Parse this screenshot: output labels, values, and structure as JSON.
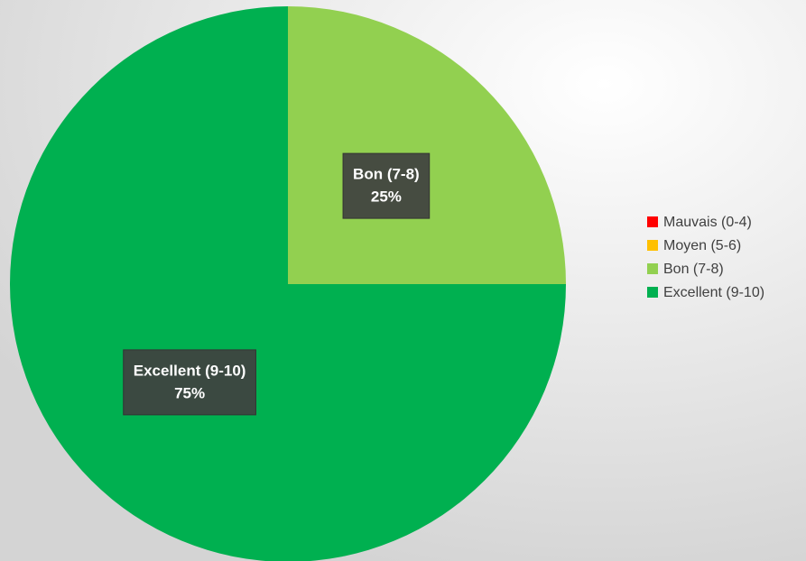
{
  "chart_data": {
    "type": "pie",
    "categories": [
      "Mauvais (0-4)",
      "Moyen (5-6)",
      "Bon (7-8)",
      "Excellent (9-10)"
    ],
    "values": [
      0,
      0,
      25,
      75
    ],
    "value_labels": [
      null,
      null,
      "25%",
      "75%"
    ],
    "colors": [
      "#ff0000",
      "#ffc000",
      "#92d050",
      "#00b050"
    ],
    "legend": "right"
  }
}
